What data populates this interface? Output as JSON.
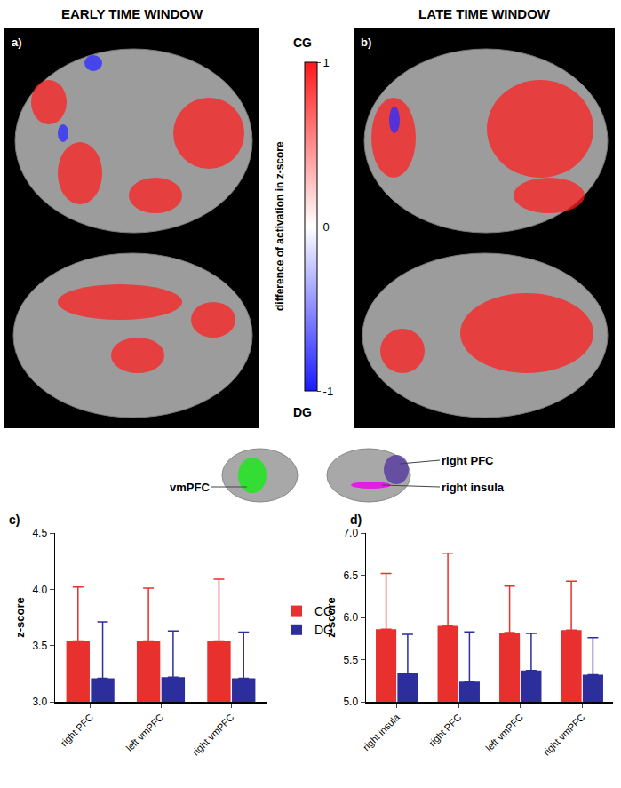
{
  "figure": {
    "panels": [
      {
        "label": "a)",
        "title": "EARLY TIME WINDOW"
      },
      {
        "label": "b)",
        "title": "LATE TIME WINDOW"
      }
    ],
    "colorbar": {
      "title": "difference of activation in z-score",
      "top_label": "CG",
      "bottom_label": "DG",
      "range": [
        -1,
        1
      ],
      "ticks": [
        -1,
        0,
        1
      ],
      "colors": [
        "#1a1aff",
        "#ffffff",
        "#ff1a1a"
      ]
    },
    "region_labels": [
      {
        "text": "vmPFC",
        "color": "#33dd33"
      },
      {
        "text": "right PFC",
        "color": "#5b3fa0"
      },
      {
        "text": "right insula",
        "color": "#e020e0"
      }
    ]
  },
  "chart_data": [
    {
      "label": "c)",
      "type": "bar",
      "y_label": "z-score",
      "categories": [
        "right PFC",
        "left vmPFC",
        "right vmPFC"
      ],
      "series": [
        {
          "name": "CG",
          "color": "#e8312f",
          "values": [
            3.54,
            3.54,
            3.54
          ],
          "errors": [
            0.48,
            0.47,
            0.55
          ]
        },
        {
          "name": "DG",
          "color": "#2c2e9c",
          "values": [
            3.21,
            3.22,
            3.21
          ],
          "errors": [
            0.5,
            0.41,
            0.41
          ]
        }
      ],
      "ylim": [
        3,
        4.5
      ],
      "yticks": [
        {
          "value": 3,
          "label": "3.0"
        },
        3.5,
        {
          "value": 4,
          "label": "4.0"
        },
        4.5
      ],
      "legend": "right"
    },
    {
      "label": "d)",
      "type": "bar",
      "y_label": "z-score",
      "categories": [
        "right insula",
        "right PFC",
        "left vmPFC",
        "right vmPFC"
      ],
      "series": [
        {
          "name": "CG",
          "color": "#e8312f",
          "values": [
            5.86,
            5.9,
            5.82,
            5.85
          ],
          "errors": [
            0.66,
            0.86,
            0.55,
            0.58
          ]
        },
        {
          "name": "DG",
          "color": "#2c2e9c",
          "values": [
            5.34,
            5.24,
            5.37,
            5.32
          ],
          "errors": [
            0.46,
            0.59,
            0.44,
            0.44
          ]
        }
      ],
      "ylim": [
        5,
        7
      ],
      "yticks": [
        {
          "value": 5,
          "label": "5.0"
        },
        5.5,
        {
          "value": 6,
          "label": "6.0"
        },
        6.5,
        {
          "value": 7,
          "label": "7.0"
        }
      ]
    }
  ]
}
